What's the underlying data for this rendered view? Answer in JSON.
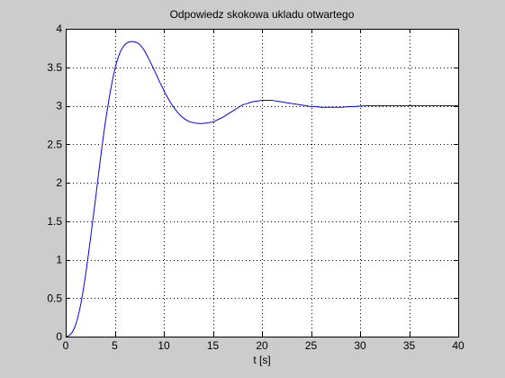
{
  "figure": {
    "background_color": "#cccccc"
  },
  "chart_data": {
    "type": "line",
    "title": "Odpowiedz skokowa ukladu otwartego",
    "xlabel": "t [s]",
    "ylabel": "",
    "xlim": [
      0,
      40
    ],
    "ylim": [
      0,
      4
    ],
    "xticks": [
      0,
      5,
      10,
      15,
      20,
      25,
      30,
      35,
      40
    ],
    "yticks": [
      0,
      0.5,
      1,
      1.5,
      2,
      2.5,
      3,
      3.5,
      4
    ],
    "xtick_labels": [
      "0",
      "5",
      "10",
      "15",
      "20",
      "25",
      "30",
      "35",
      "40"
    ],
    "ytick_labels": [
      "0",
      "0.5",
      "1",
      "1.5",
      "2",
      "2.5",
      "3",
      "3.5",
      "4"
    ],
    "grid": true,
    "grid_style": "dotted",
    "legend": null,
    "plot_background": "#ffffff",
    "series": [
      {
        "color": "#0000ff",
        "x": [
          0,
          0.5,
          1,
          1.5,
          2,
          2.5,
          3,
          3.5,
          4,
          4.5,
          5,
          5.5,
          6,
          6.5,
          7,
          7.5,
          8,
          8.5,
          9,
          9.5,
          10,
          10.5,
          11,
          11.5,
          12,
          12.5,
          13,
          13.5,
          14,
          14.5,
          15,
          15.5,
          16,
          16.5,
          17,
          17.5,
          18,
          18.5,
          19,
          19.5,
          20,
          20.5,
          21,
          21.5,
          22,
          22.5,
          23,
          23.5,
          24,
          24.5,
          25,
          25.5,
          26,
          26.5,
          27,
          27.5,
          28,
          28.5,
          29,
          29.5,
          30,
          31,
          32,
          33,
          34,
          35,
          36,
          37,
          38,
          39,
          40
        ],
        "y": [
          0,
          0.03,
          0.15,
          0.4,
          0.78,
          1.25,
          1.75,
          2.27,
          2.75,
          3.15,
          3.47,
          3.68,
          3.79,
          3.83,
          3.83,
          3.8,
          3.72,
          3.6,
          3.47,
          3.33,
          3.2,
          3.08,
          2.98,
          2.9,
          2.84,
          2.8,
          2.78,
          2.77,
          2.77,
          2.78,
          2.79,
          2.82,
          2.85,
          2.89,
          2.93,
          2.97,
          3.01,
          3.03,
          3.05,
          3.06,
          3.07,
          3.07,
          3.07,
          3.06,
          3.05,
          3.04,
          3.03,
          3.02,
          3.01,
          3.0,
          2.99,
          2.99,
          2.98,
          2.98,
          2.98,
          2.98,
          2.98,
          2.985,
          2.99,
          2.99,
          2.995,
          3.0,
          3.0,
          3.0,
          3.0,
          3.0,
          3.0,
          3.0,
          3.0,
          3.0,
          3.0
        ]
      }
    ]
  }
}
